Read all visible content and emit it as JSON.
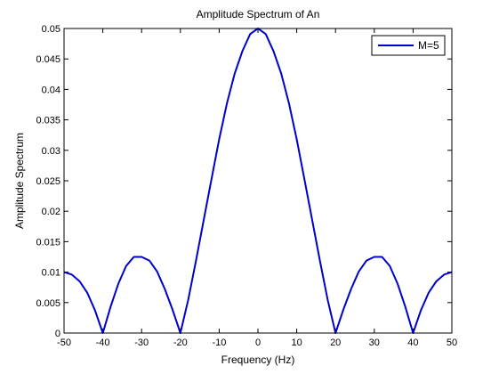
{
  "chart_data": {
    "type": "line",
    "title": "Amplitude Spectrum of An",
    "xlabel": "Frequency (Hz)",
    "ylabel": "Amplitude Spectrum",
    "xlim": [
      -50,
      50
    ],
    "ylim": [
      0,
      0.05
    ],
    "xticks": [
      "-50",
      "-40",
      "-30",
      "-20",
      "-10",
      "0",
      "10",
      "20",
      "30",
      "40",
      "50"
    ],
    "yticks": [
      "0",
      "0.005",
      "0.01",
      "0.015",
      "0.02",
      "0.025",
      "0.03",
      "0.035",
      "0.04",
      "0.045",
      "0.05"
    ],
    "grid": false,
    "legend": "top-right",
    "series": [
      {
        "name": "M=5",
        "color": "#0000cc",
        "x": [
          -50,
          -48,
          -46,
          -44,
          -42,
          -40,
          -38,
          -36,
          -34,
          -32,
          -30,
          -28,
          -26,
          -24,
          -22,
          -20,
          -18,
          -16,
          -14,
          -12,
          -10,
          -8,
          -6,
          -4,
          -2,
          0,
          2,
          4,
          6,
          8,
          10,
          12,
          14,
          16,
          18,
          20,
          22,
          24,
          26,
          28,
          30,
          32,
          34,
          36,
          38,
          40,
          42,
          44,
          46,
          48,
          50
        ],
        "y": [
          0.01,
          0.0096,
          0.0085,
          0.0066,
          0.0037,
          0.0,
          0.0043,
          0.0081,
          0.011,
          0.0125,
          0.0125,
          0.0119,
          0.0101,
          0.0072,
          0.0038,
          0.0,
          0.0054,
          0.0118,
          0.0185,
          0.0252,
          0.0318,
          0.0377,
          0.0426,
          0.0463,
          0.0491,
          0.05,
          0.0491,
          0.0463,
          0.0426,
          0.0377,
          0.0318,
          0.0252,
          0.0185,
          0.0118,
          0.0054,
          0.0,
          0.0038,
          0.0072,
          0.0101,
          0.0119,
          0.0125,
          0.0125,
          0.011,
          0.0081,
          0.0043,
          0.0,
          0.0037,
          0.0066,
          0.0085,
          0.0096,
          0.01
        ]
      }
    ]
  }
}
